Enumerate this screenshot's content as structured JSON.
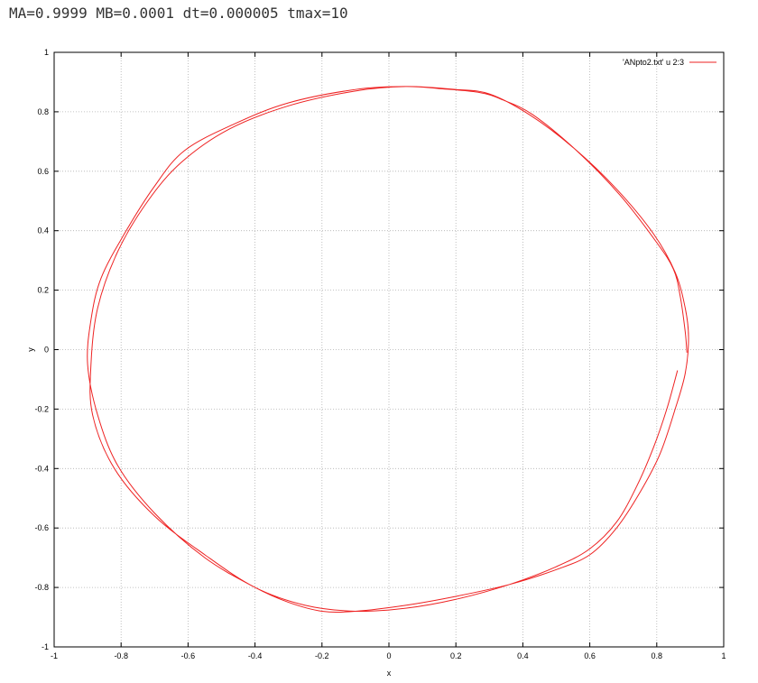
{
  "caption": "MA=0.9999 MB=0.0001 dt=0.000005 tmax=10",
  "chart_data": {
    "type": "line",
    "title": "",
    "xlabel": "x",
    "ylabel": "y",
    "xlim": [
      -1,
      1
    ],
    "ylim": [
      -1,
      1
    ],
    "grid": true,
    "legend_position": "top-right",
    "x_ticks": [
      -1,
      -0.8,
      -0.6,
      -0.4,
      -0.2,
      0,
      0.2,
      0.4,
      0.6,
      0.8,
      1
    ],
    "y_ticks": [
      -1,
      -0.8,
      -0.6,
      -0.4,
      -0.2,
      0,
      0.2,
      0.4,
      0.6,
      0.8,
      1
    ],
    "x_tick_labels": [
      "-1",
      "-0.8",
      "-0.6",
      "-0.4",
      "-0.2",
      "0",
      "0.2",
      "0.4",
      "0.6",
      "0.8",
      "1"
    ],
    "y_tick_labels": [
      "-1",
      "-0.8",
      "-0.6",
      "-0.4",
      "-0.2",
      "0",
      "0.2",
      "0.4",
      "0.6",
      "0.8",
      "1"
    ],
    "series": [
      {
        "name": "'ANpto2.txt' u 2:3",
        "color": "#ee2222",
        "points": [
          [
            0.862,
            -0.07
          ],
          [
            0.83,
            -0.2
          ],
          [
            0.79,
            -0.33
          ],
          [
            0.74,
            -0.46
          ],
          [
            0.68,
            -0.58
          ],
          [
            0.6,
            -0.67
          ],
          [
            0.5,
            -0.73
          ],
          [
            0.36,
            -0.79
          ],
          [
            0.2,
            -0.84
          ],
          [
            0.05,
            -0.87
          ],
          [
            -0.1,
            -0.88
          ],
          [
            -0.25,
            -0.86
          ],
          [
            -0.4,
            -0.8
          ],
          [
            -0.55,
            -0.69
          ],
          [
            -0.7,
            -0.56
          ],
          [
            -0.82,
            -0.4
          ],
          [
            -0.885,
            -0.22
          ],
          [
            -0.89,
            -0.05
          ],
          [
            -0.87,
            0.14
          ],
          [
            -0.81,
            0.33
          ],
          [
            -0.72,
            0.5
          ],
          [
            -0.62,
            0.63
          ],
          [
            -0.48,
            0.74
          ],
          [
            -0.3,
            0.82
          ],
          [
            -0.1,
            0.87
          ],
          [
            0.05,
            0.885
          ],
          [
            0.2,
            0.875
          ],
          [
            0.3,
            0.86
          ],
          [
            0.42,
            0.79
          ],
          [
            0.55,
            0.68
          ],
          [
            0.68,
            0.54
          ],
          [
            0.79,
            0.39
          ],
          [
            0.855,
            0.26
          ],
          [
            0.885,
            0.14
          ],
          [
            0.895,
            0.04
          ],
          [
            0.885,
            -0.08
          ],
          [
            0.855,
            -0.2
          ],
          [
            0.81,
            -0.35
          ],
          [
            0.75,
            -0.48
          ],
          [
            0.68,
            -0.6
          ],
          [
            0.6,
            -0.69
          ],
          [
            0.5,
            -0.74
          ],
          [
            0.36,
            -0.79
          ],
          [
            0.2,
            -0.83
          ],
          [
            0.05,
            -0.86
          ],
          [
            -0.1,
            -0.88
          ],
          [
            -0.2,
            -0.88
          ],
          [
            -0.3,
            -0.85
          ],
          [
            -0.4,
            -0.8
          ],
          [
            -0.55,
            -0.7
          ],
          [
            -0.7,
            -0.55
          ],
          [
            -0.81,
            -0.39
          ],
          [
            -0.87,
            -0.22
          ],
          [
            -0.9,
            -0.05
          ],
          [
            -0.89,
            0.1
          ],
          [
            -0.86,
            0.24
          ],
          [
            -0.79,
            0.39
          ],
          [
            -0.7,
            0.55
          ],
          [
            -0.61,
            0.67
          ],
          [
            -0.46,
            0.76
          ],
          [
            -0.3,
            0.83
          ],
          [
            -0.1,
            0.875
          ],
          [
            0.05,
            0.885
          ],
          [
            0.15,
            0.878
          ],
          [
            0.27,
            0.865
          ],
          [
            0.34,
            0.84
          ],
          [
            0.43,
            0.79
          ],
          [
            0.56,
            0.67
          ],
          [
            0.69,
            0.52
          ],
          [
            0.8,
            0.36
          ],
          [
            0.85,
            0.27
          ],
          [
            0.87,
            0.18
          ],
          [
            0.885,
            0.06
          ],
          [
            0.89,
            -0.01
          ]
        ]
      }
    ]
  }
}
